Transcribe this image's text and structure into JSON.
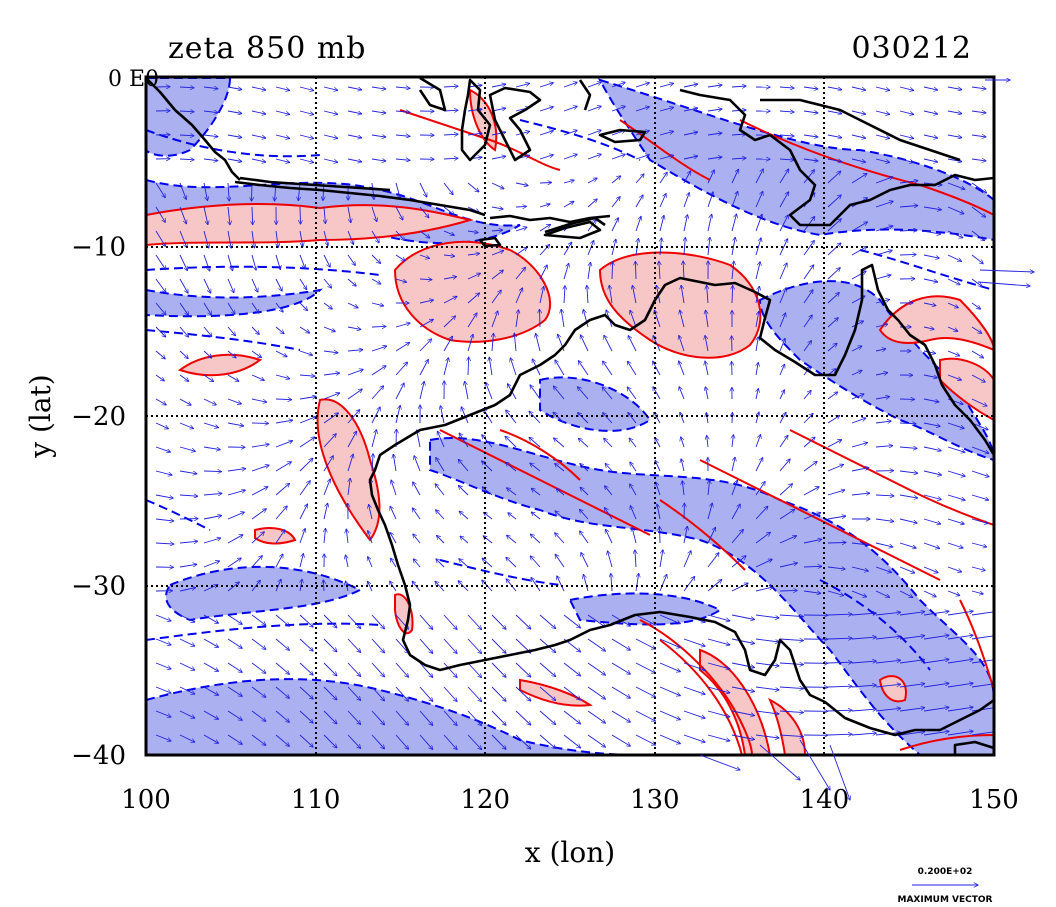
{
  "map": {
    "title_left": "zeta 850 mb",
    "title_right": "030212",
    "corner_label": "0 E0",
    "xlabel": "x (lon)",
    "ylabel": "y (lat)",
    "x_ticks": [
      {
        "value": 100,
        "label": "100"
      },
      {
        "value": 110,
        "label": "110"
      },
      {
        "value": 120,
        "label": "120"
      },
      {
        "value": 130,
        "label": "130"
      },
      {
        "value": 140,
        "label": "140"
      },
      {
        "value": 150,
        "label": "150"
      }
    ],
    "y_ticks": [
      {
        "value": -10,
        "label": "−10"
      },
      {
        "value": -20,
        "label": "−20"
      },
      {
        "value": -30,
        "label": "−30"
      },
      {
        "value": -40,
        "label": "−40"
      }
    ],
    "xlim": [
      100,
      150
    ],
    "ylim": [
      -40,
      0
    ],
    "grid": true,
    "colors": {
      "positive_fill": "#f7c6c6",
      "positive_line": "#ee0000",
      "negative_fill": "#aab0f0",
      "negative_line": "#0000ee",
      "vector": "#2020e0",
      "coast": "#000000"
    },
    "vector_legend": {
      "value_label": "0.200E+02",
      "caption": "MAXIMUM VECTOR"
    }
  }
}
